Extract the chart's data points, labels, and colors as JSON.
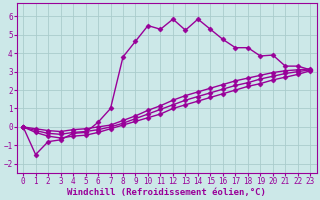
{
  "xlabel": "Windchill (Refroidissement éolien,°C)",
  "bg_color": "#cce8e8",
  "grid_color": "#aacccc",
  "line_color": "#990099",
  "xlim": [
    -0.5,
    23.5
  ],
  "ylim": [
    -2.5,
    6.7
  ],
  "xticks": [
    0,
    1,
    2,
    3,
    4,
    5,
    6,
    7,
    8,
    9,
    10,
    11,
    12,
    13,
    14,
    15,
    16,
    17,
    18,
    19,
    20,
    21,
    22,
    23
  ],
  "yticks": [
    -2,
    -1,
    0,
    1,
    2,
    3,
    4,
    5,
    6
  ],
  "line1_x": [
    0,
    1,
    2,
    3,
    4,
    5,
    6,
    7,
    8,
    9,
    10,
    11,
    12,
    13,
    14,
    15,
    16,
    17,
    18,
    19,
    20,
    21,
    22,
    23
  ],
  "line1_y": [
    0.0,
    -1.5,
    -0.8,
    -0.7,
    -0.35,
    -0.3,
    0.25,
    1.0,
    3.8,
    4.65,
    5.5,
    5.3,
    5.85,
    5.25,
    5.85,
    5.3,
    4.75,
    4.3,
    4.3,
    3.85,
    3.9,
    3.3,
    3.3,
    3.1
  ],
  "line2_x": [
    0,
    1,
    2,
    3,
    4,
    5,
    6,
    7,
    8,
    9,
    10,
    11,
    12,
    13,
    14,
    15,
    16,
    17,
    18,
    19,
    20,
    21,
    22,
    23
  ],
  "line2_y": [
    0.0,
    -0.3,
    -0.5,
    -0.6,
    -0.5,
    -0.45,
    -0.3,
    -0.1,
    0.1,
    0.3,
    0.5,
    0.7,
    1.0,
    1.2,
    1.4,
    1.6,
    1.8,
    2.0,
    2.2,
    2.35,
    2.55,
    2.7,
    2.85,
    3.05
  ],
  "line3_x": [
    0,
    1,
    2,
    3,
    4,
    5,
    6,
    7,
    8,
    9,
    10,
    11,
    12,
    13,
    14,
    15,
    16,
    17,
    18,
    19,
    20,
    21,
    22,
    23
  ],
  "line3_y": [
    0.0,
    -0.2,
    -0.35,
    -0.4,
    -0.3,
    -0.25,
    -0.15,
    0.0,
    0.2,
    0.45,
    0.7,
    0.95,
    1.2,
    1.45,
    1.65,
    1.85,
    2.05,
    2.25,
    2.4,
    2.6,
    2.75,
    2.9,
    3.0,
    3.1
  ],
  "line4_x": [
    0,
    1,
    2,
    3,
    4,
    5,
    6,
    7,
    8,
    9,
    10,
    11,
    12,
    13,
    14,
    15,
    16,
    17,
    18,
    19,
    20,
    21,
    22,
    23
  ],
  "line4_y": [
    0.0,
    -0.1,
    -0.2,
    -0.25,
    -0.15,
    -0.1,
    0.0,
    0.1,
    0.35,
    0.6,
    0.9,
    1.15,
    1.45,
    1.7,
    1.9,
    2.1,
    2.3,
    2.5,
    2.65,
    2.8,
    2.95,
    3.05,
    3.1,
    3.15
  ],
  "marker": "D",
  "markersize": 2.5,
  "linewidth": 1.0,
  "tick_fontsize": 5.5,
  "label_fontsize": 6.5
}
